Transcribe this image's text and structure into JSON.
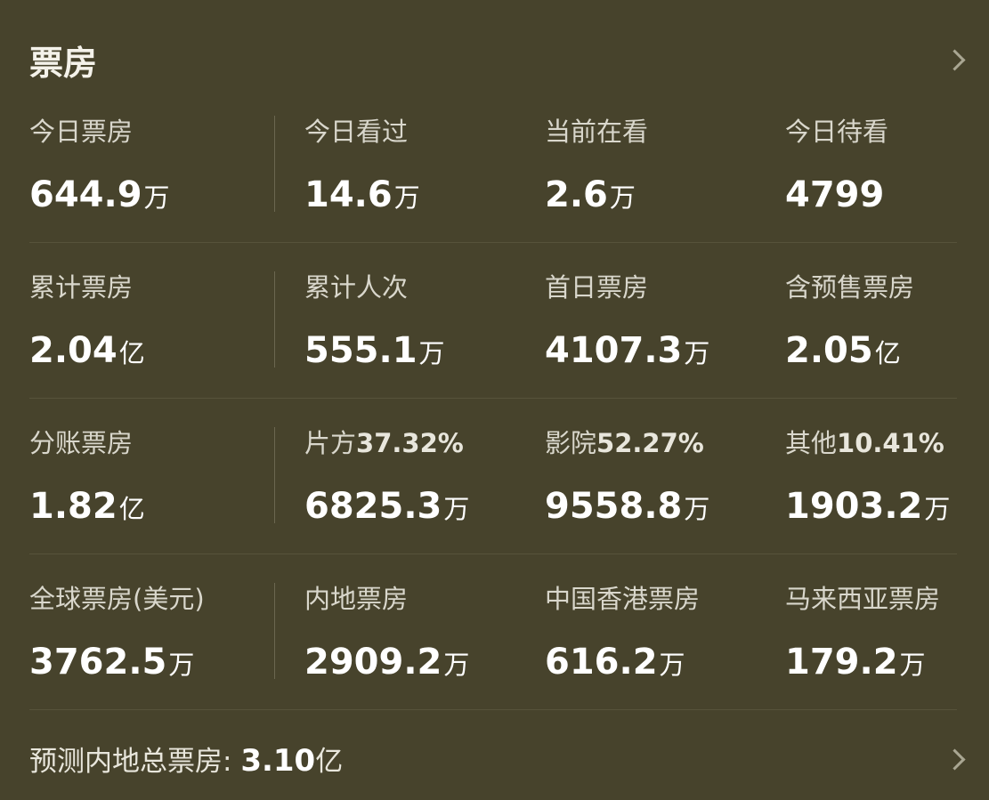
{
  "header": {
    "title": "票房"
  },
  "rows": [
    {
      "cells": [
        {
          "label": "今日票房",
          "value": "644.9",
          "unit": "万"
        },
        {
          "label": "今日看过",
          "value": "14.6",
          "unit": "万"
        },
        {
          "label": "当前在看",
          "value": "2.6",
          "unit": "万"
        },
        {
          "label": "今日待看",
          "value": "4799",
          "unit": ""
        }
      ]
    },
    {
      "cells": [
        {
          "label": "累计票房",
          "value": "2.04",
          "unit": "亿"
        },
        {
          "label": "累计人次",
          "value": "555.1",
          "unit": "万"
        },
        {
          "label": "首日票房",
          "value": "4107.3",
          "unit": "万"
        },
        {
          "label": "含预售票房",
          "value": "2.05",
          "unit": "亿"
        }
      ]
    },
    {
      "cells": [
        {
          "label": "分账票房",
          "pct": "",
          "value": "1.82",
          "unit": "亿"
        },
        {
          "label": "片方",
          "pct": "37.32%",
          "value": "6825.3",
          "unit": "万"
        },
        {
          "label": "影院",
          "pct": "52.27%",
          "value": "9558.8",
          "unit": "万"
        },
        {
          "label": "其他",
          "pct": "10.41%",
          "value": "1903.2",
          "unit": "万"
        }
      ]
    },
    {
      "cells": [
        {
          "label": "全球票房(美元)",
          "value": "3762.5",
          "unit": "万"
        },
        {
          "label": "内地票房",
          "value": "2909.2",
          "unit": "万"
        },
        {
          "label": "中国香港票房",
          "value": "616.2",
          "unit": "万"
        },
        {
          "label": "马来西亚票房",
          "value": "179.2",
          "unit": "万"
        }
      ]
    }
  ],
  "footer": {
    "label": "预测内地总票房:",
    "value": "3.10",
    "unit": "亿"
  }
}
